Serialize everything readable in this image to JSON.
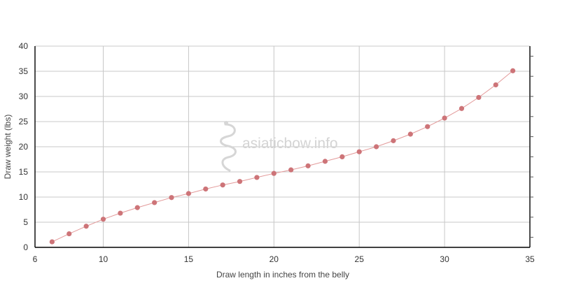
{
  "chart_data": {
    "type": "line",
    "xlabel": "Draw length in inches from the belly",
    "ylabel": "Draw weight (lbs)",
    "xlim": [
      6,
      35
    ],
    "ylim": [
      0,
      40
    ],
    "x_ticks": [
      6,
      10,
      15,
      20,
      25,
      30,
      35
    ],
    "y_ticks": [
      0,
      5,
      10,
      15,
      20,
      25,
      30,
      35,
      40
    ],
    "x_tick_labels": [
      "6",
      "10",
      "15",
      "20",
      "25",
      "30",
      "35"
    ],
    "y_tick_labels": [
      "0",
      "5",
      "10",
      "15",
      "20",
      "25",
      "30",
      "35",
      "40"
    ],
    "grid": true,
    "series": [
      {
        "color": "#cd7478",
        "x": [
          7,
          8,
          9,
          10,
          11,
          12,
          13,
          14,
          15,
          16,
          17,
          18,
          19,
          20,
          21,
          22,
          23,
          24,
          25,
          26,
          27,
          28,
          29,
          30,
          31,
          32,
          33,
          34
        ],
        "y": [
          1.1,
          2.7,
          4.2,
          5.6,
          6.8,
          7.9,
          8.9,
          9.9,
          10.7,
          11.6,
          12.4,
          13.1,
          13.9,
          14.7,
          15.4,
          16.2,
          17.1,
          18.0,
          19.0,
          20.0,
          21.2,
          22.5,
          24.0,
          25.7,
          27.6,
          29.8,
          32.3,
          35.1
        ]
      }
    ],
    "watermark": "asiaticbow.info"
  }
}
